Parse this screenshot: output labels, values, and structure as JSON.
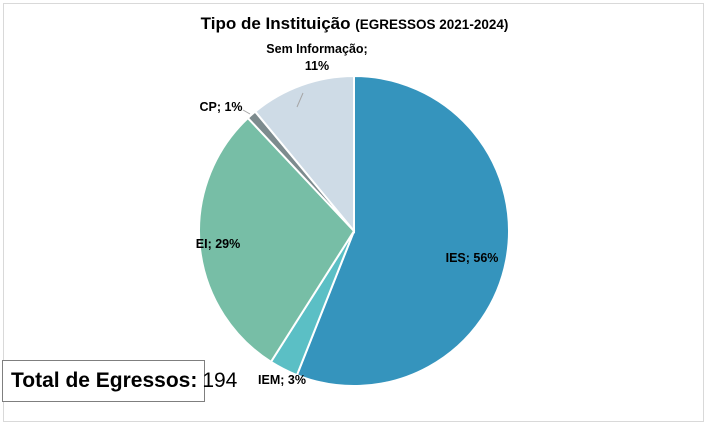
{
  "chart_data": {
    "type": "pie",
    "title": "Tipo de Instituição",
    "subtitle": "(EGRESSOS 2021-2024)",
    "slices": [
      {
        "name": "IES",
        "label": "IES; 56%",
        "value": 56,
        "color": "#3594bd"
      },
      {
        "name": "IEM",
        "label": "IEM; 3%",
        "value": 3,
        "color": "#5bbfc5"
      },
      {
        "name": "EI",
        "label": "EI; 29%",
        "value": 29,
        "color": "#77bea6"
      },
      {
        "name": "CP",
        "label": "CP; 1%",
        "value": 1,
        "color": "#7d8b8e"
      },
      {
        "name": "Sem Informação",
        "label": "Sem Informação;",
        "label_value": "11%",
        "value": 11,
        "color": "#cedbe6"
      }
    ],
    "legend": "none"
  },
  "total": {
    "label": "Total de Egressos:",
    "value": "194"
  }
}
